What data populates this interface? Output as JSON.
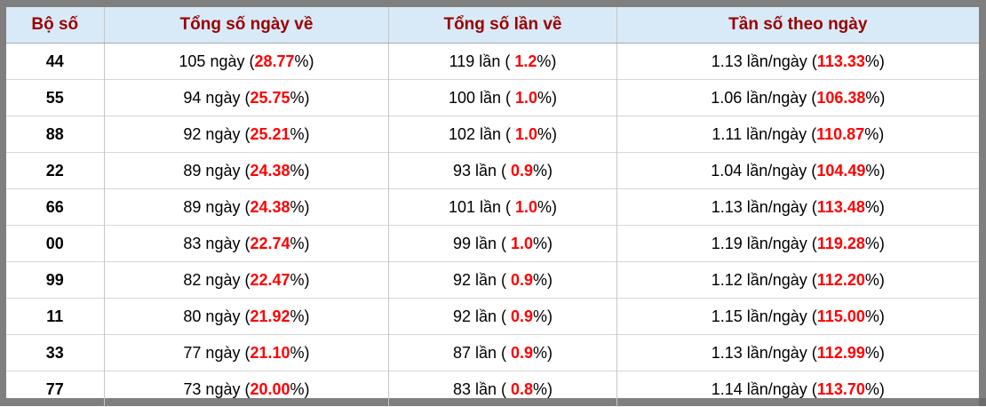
{
  "colors": {
    "frame": "#7f7f7f",
    "header_bg": "#d8eaf7",
    "header_text": "#990000",
    "percent_highlight": "#ff0000",
    "body_text": "#000000"
  },
  "table": {
    "columns": [
      {
        "label": "Bộ số"
      },
      {
        "label": "Tổng số ngày về"
      },
      {
        "label": "Tổng số lần về"
      },
      {
        "label": "Tần số theo ngày"
      }
    ],
    "rows": [
      {
        "pair": "44",
        "days_prefix": "105 ngày (",
        "days_pct": "28.77",
        "days_suffix": "%)",
        "times_prefix": "119 lần ( ",
        "times_pct": "1.2",
        "times_suffix": "%)",
        "freq_prefix": "1.13 lần/ngày (",
        "freq_pct": "113.33",
        "freq_suffix": "%)"
      },
      {
        "pair": "55",
        "days_prefix": "94 ngày (",
        "days_pct": "25.75",
        "days_suffix": "%)",
        "times_prefix": "100 lần ( ",
        "times_pct": "1.0",
        "times_suffix": "%)",
        "freq_prefix": "1.06 lần/ngày (",
        "freq_pct": "106.38",
        "freq_suffix": "%)"
      },
      {
        "pair": "88",
        "days_prefix": "92 ngày (",
        "days_pct": "25.21",
        "days_suffix": "%)",
        "times_prefix": "102 lần ( ",
        "times_pct": "1.0",
        "times_suffix": "%)",
        "freq_prefix": "1.11 lần/ngày (",
        "freq_pct": "110.87",
        "freq_suffix": "%)"
      },
      {
        "pair": "22",
        "days_prefix": "89 ngày (",
        "days_pct": "24.38",
        "days_suffix": "%)",
        "times_prefix": "93 lần ( ",
        "times_pct": "0.9",
        "times_suffix": "%)",
        "freq_prefix": "1.04 lần/ngày (",
        "freq_pct": "104.49",
        "freq_suffix": "%)"
      },
      {
        "pair": "66",
        "days_prefix": "89 ngày (",
        "days_pct": "24.38",
        "days_suffix": "%)",
        "times_prefix": "101 lần ( ",
        "times_pct": "1.0",
        "times_suffix": "%)",
        "freq_prefix": "1.13 lần/ngày (",
        "freq_pct": "113.48",
        "freq_suffix": "%)"
      },
      {
        "pair": "00",
        "days_prefix": "83 ngày (",
        "days_pct": "22.74",
        "days_suffix": "%)",
        "times_prefix": "99 lần ( ",
        "times_pct": "1.0",
        "times_suffix": "%)",
        "freq_prefix": "1.19 lần/ngày (",
        "freq_pct": "119.28",
        "freq_suffix": "%)"
      },
      {
        "pair": "99",
        "days_prefix": "82 ngày (",
        "days_pct": "22.47",
        "days_suffix": "%)",
        "times_prefix": "92 lần ( ",
        "times_pct": "0.9",
        "times_suffix": "%)",
        "freq_prefix": "1.12 lần/ngày (",
        "freq_pct": "112.20",
        "freq_suffix": "%)"
      },
      {
        "pair": "11",
        "days_prefix": "80 ngày (",
        "days_pct": "21.92",
        "days_suffix": "%)",
        "times_prefix": "92 lần ( ",
        "times_pct": "0.9",
        "times_suffix": "%)",
        "freq_prefix": "1.15 lần/ngày (",
        "freq_pct": "115.00",
        "freq_suffix": "%)"
      },
      {
        "pair": "33",
        "days_prefix": "77 ngày (",
        "days_pct": "21.10",
        "days_suffix": "%)",
        "times_prefix": "87 lần ( ",
        "times_pct": "0.9",
        "times_suffix": "%)",
        "freq_prefix": "1.13 lần/ngày (",
        "freq_pct": "112.99",
        "freq_suffix": "%)"
      },
      {
        "pair": "77",
        "days_prefix": "73 ngày (",
        "days_pct": "20.00",
        "days_suffix": "%)",
        "times_prefix": "83 lần ( ",
        "times_pct": "0.8",
        "times_suffix": "%)",
        "freq_prefix": "1.14 lần/ngày (",
        "freq_pct": "113.70",
        "freq_suffix": "%)"
      }
    ]
  }
}
